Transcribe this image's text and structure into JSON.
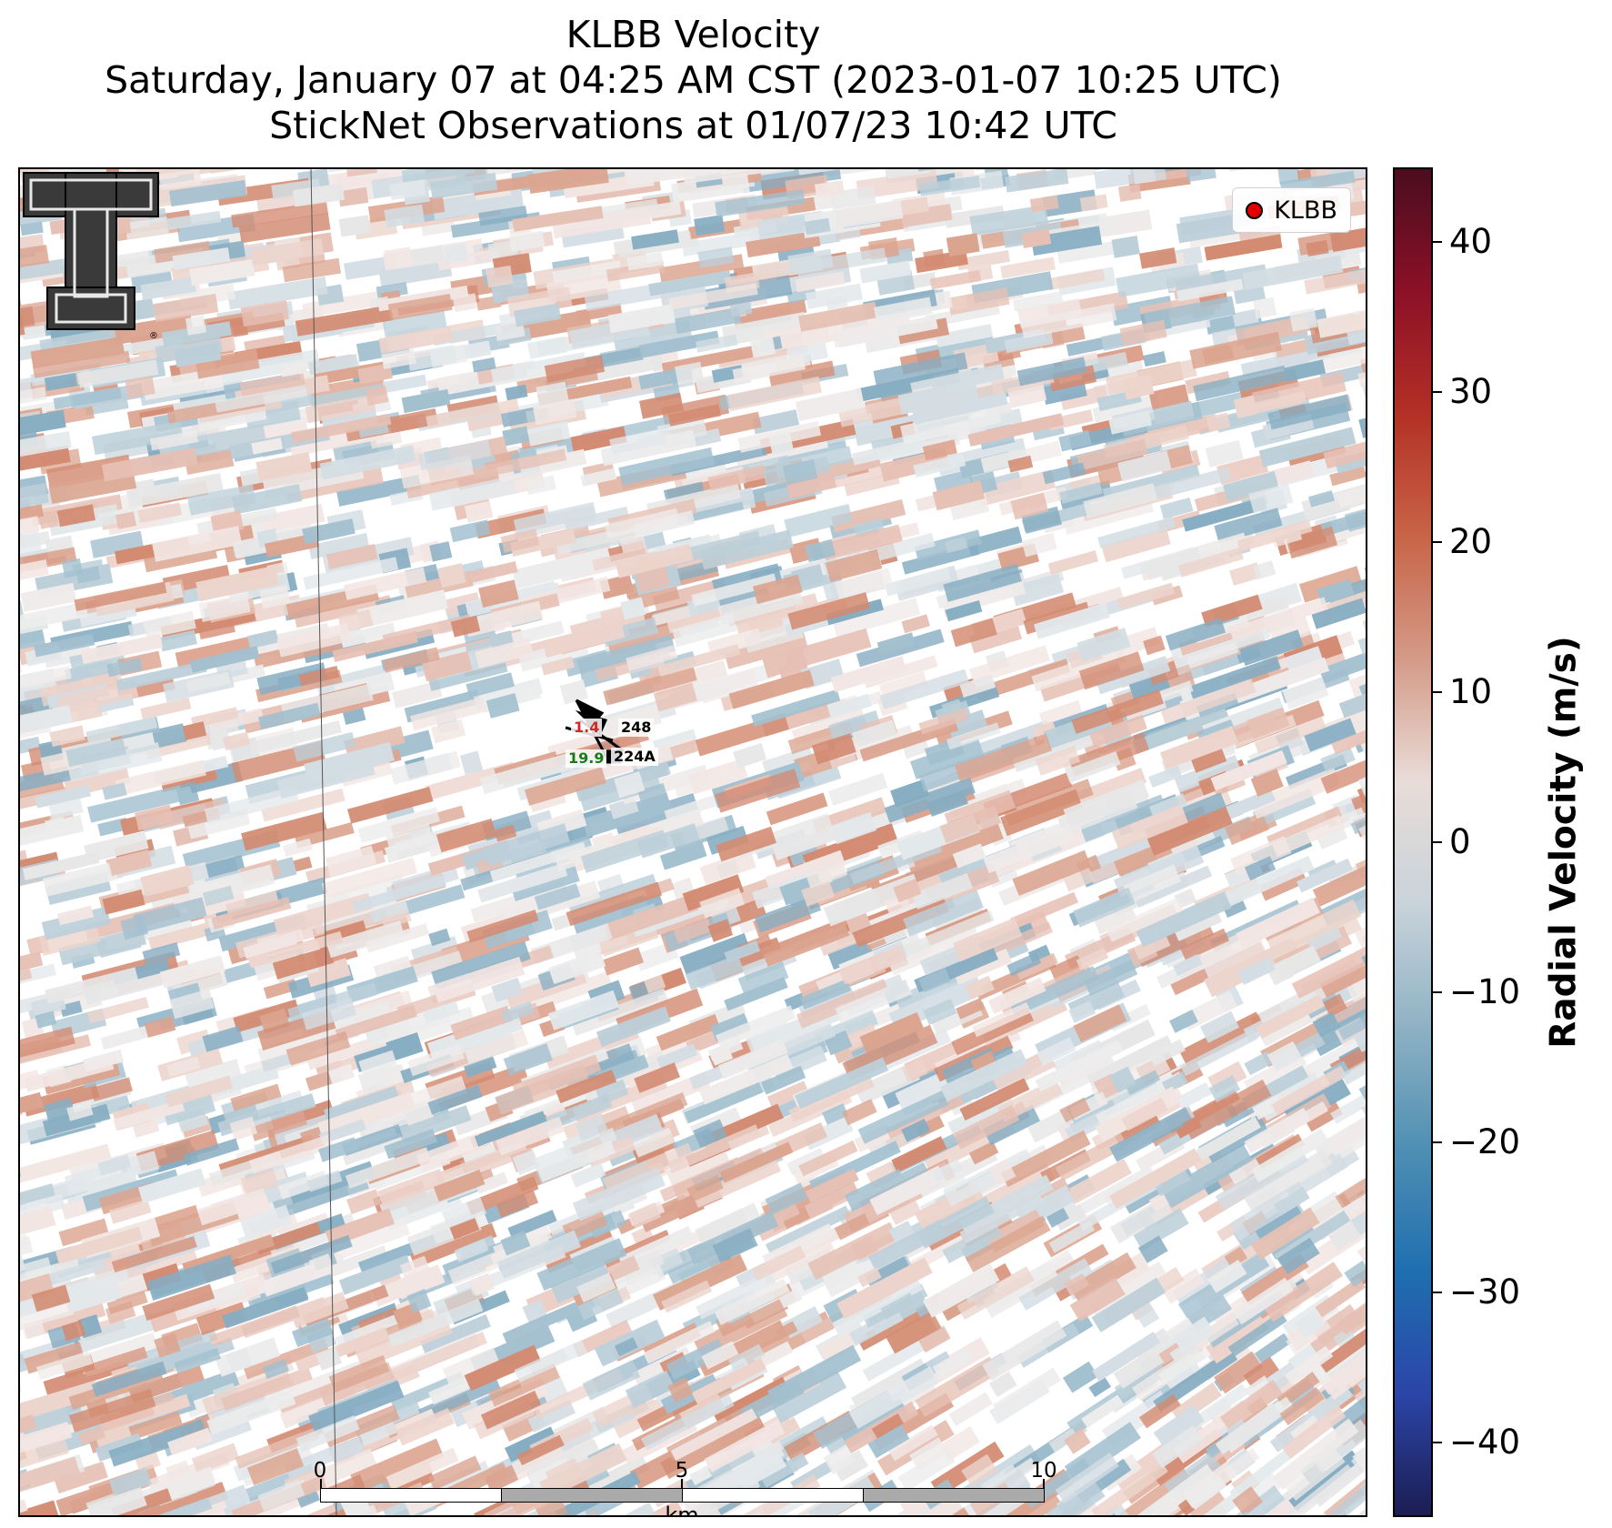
{
  "title": {
    "line1": "KLBB Velocity",
    "line2": "Saturday, January 07 at 04:25 AM CST (2023-01-07 10:25 UTC)",
    "line3": "StickNet Observations at 01/07/23 10:42 UTC"
  },
  "legend": {
    "label": "KLBB",
    "marker_color": "#e00000"
  },
  "logo": {
    "name": "Texas Tech Double T",
    "registered_mark": "®"
  },
  "stations": [
    {
      "id": "248",
      "value": "1.4",
      "value_color": "#d62728"
    },
    {
      "id": "224A",
      "value": "19.9",
      "value_color": "#1a7a1a"
    }
  ],
  "scalebar": {
    "labels": [
      "0",
      "5",
      "10"
    ],
    "unit": "km"
  },
  "colorbar": {
    "title": "Radial Velocity (m/s)",
    "min": -45,
    "max": 45,
    "ticks": [
      40,
      30,
      20,
      10,
      0,
      -10,
      -20,
      -30,
      -40
    ],
    "tick_labels": [
      "40",
      "30",
      "20",
      "10",
      "0",
      "−10",
      "−20",
      "−30",
      "−40"
    ],
    "colors": [
      "#4a0d1f",
      "#8c1027",
      "#b33025",
      "#c86448",
      "#d49a87",
      "#e8dcd8",
      "#c9d3da",
      "#8fb2c4",
      "#4f8fb3",
      "#1f6fb0",
      "#2b45a8",
      "#1c1d52"
    ]
  }
}
